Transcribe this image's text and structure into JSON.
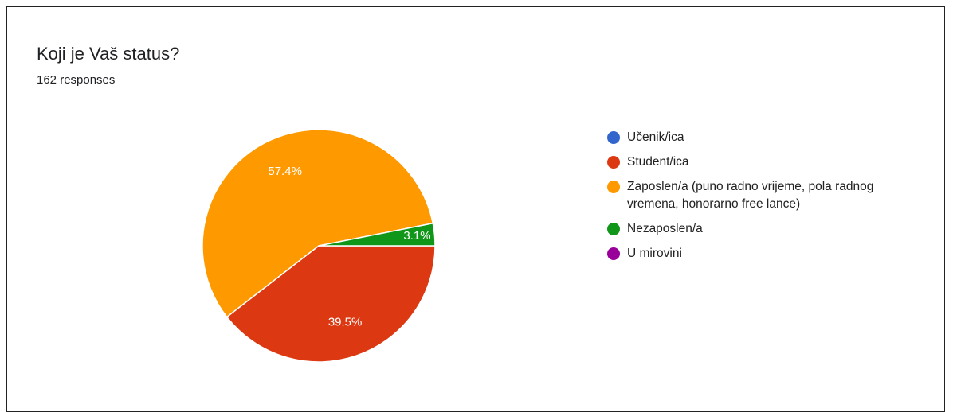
{
  "title": "Koji je Vaš status?",
  "subtitle": "162 responses",
  "chart_data": {
    "type": "pie",
    "categories": [
      "Učenik/ica",
      "Student/ica",
      "Zaposlen/a (puno radno vrijeme, pola radnog vremena, honorarno free lance)",
      "Nezaposlen/a",
      "U mirovini"
    ],
    "values": [
      0,
      39.5,
      57.4,
      3.1,
      0
    ],
    "value_labels": [
      null,
      "39.5%",
      "57.4%",
      "3.1%",
      null
    ],
    "colors": [
      "#3366cc",
      "#dc3912",
      "#ff9900",
      "#109618",
      "#990099"
    ]
  }
}
